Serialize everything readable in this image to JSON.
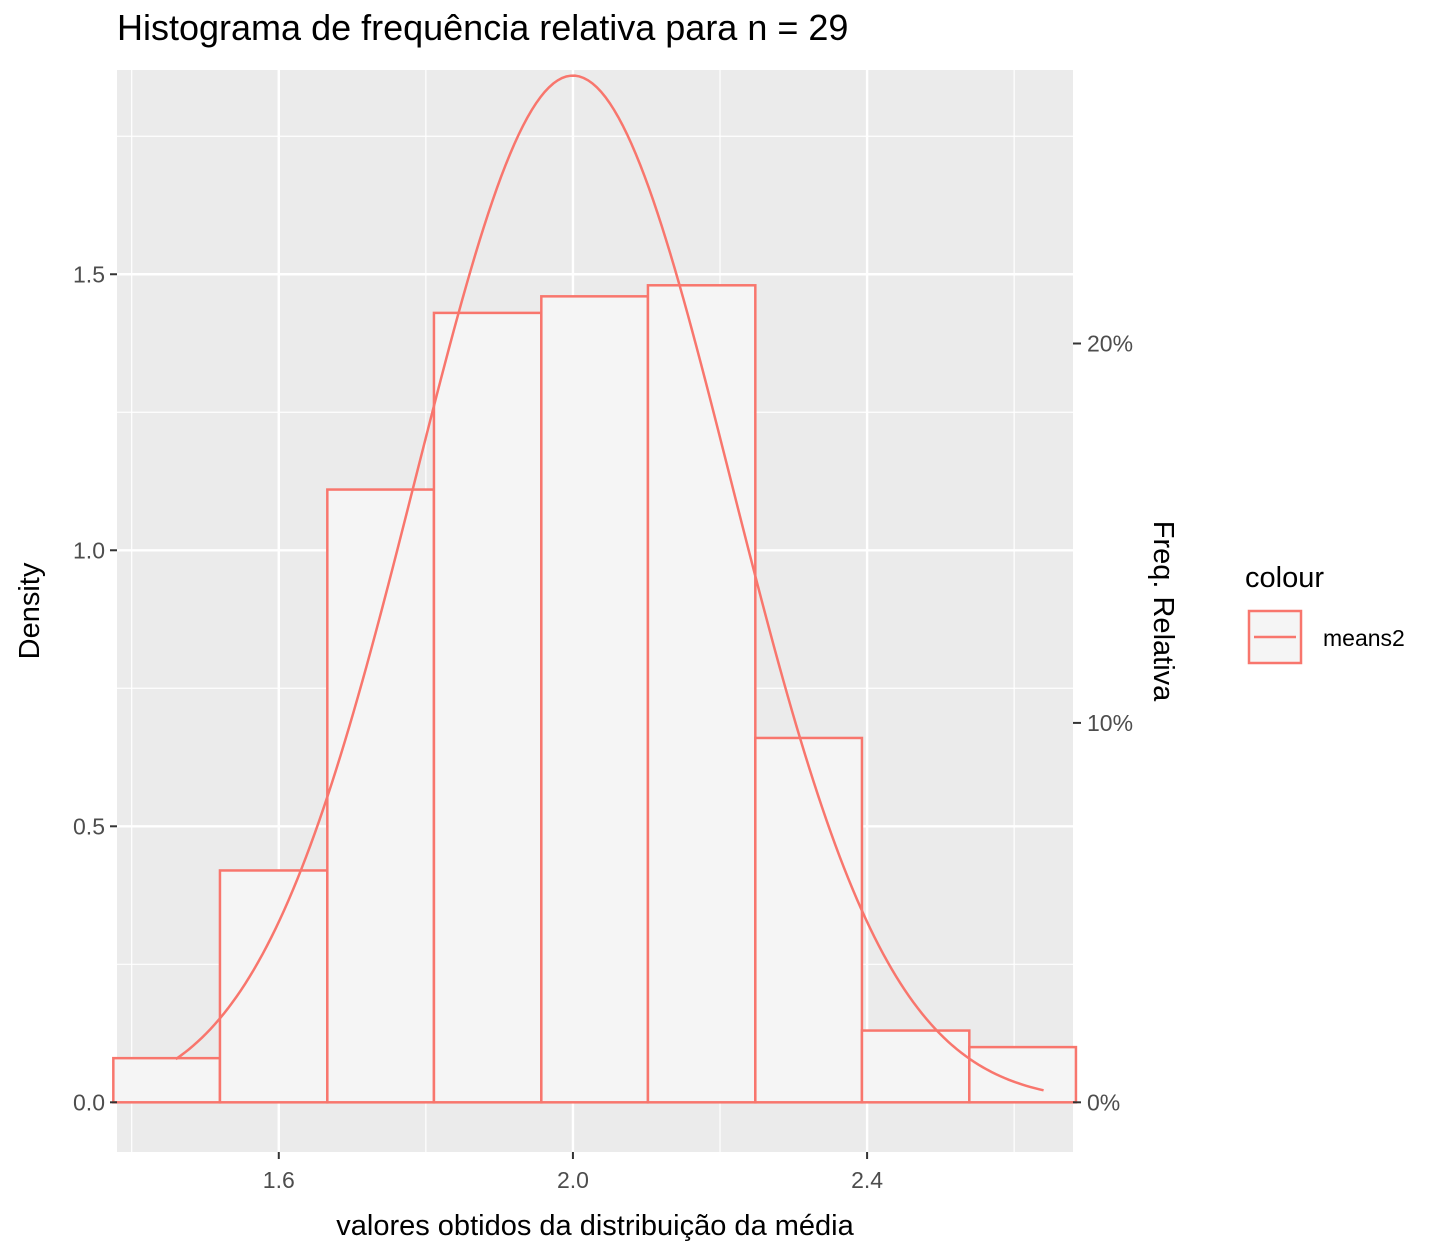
{
  "chart_data": {
    "type": "bar",
    "title": "Histograma de frequência relativa para n = 29",
    "xlabel": "valores obtidos da distribuição da média",
    "ylabel": "Density",
    "y2label": "Freq. Relativa",
    "xlim": [
      1.38,
      2.68
    ],
    "ylim": [
      -0.09,
      1.87
    ],
    "x_ticks": [
      1.6,
      2.0,
      2.4
    ],
    "x_tick_labels": [
      "1.6",
      "2.0",
      "2.4"
    ],
    "y_ticks": [
      0.0,
      0.5,
      1.0,
      1.5
    ],
    "y_tick_labels": [
      "0.0",
      "0.5",
      "1.0",
      "1.5"
    ],
    "y2_ticks": [
      0.0,
      0.1,
      0.2
    ],
    "y2_tick_labels": [
      "0%",
      "10%",
      "20%"
    ],
    "y2_per_y": 0.1455,
    "grid": true,
    "bins": [
      {
        "x0": 1.375,
        "x1": 1.52,
        "density": 0.08
      },
      {
        "x0": 1.52,
        "x1": 1.666,
        "density": 0.42
      },
      {
        "x0": 1.666,
        "x1": 1.811,
        "density": 1.11
      },
      {
        "x0": 1.811,
        "x1": 1.957,
        "density": 1.43
      },
      {
        "x0": 1.957,
        "x1": 2.102,
        "density": 1.46
      },
      {
        "x0": 2.102,
        "x1": 2.248,
        "density": 1.48
      },
      {
        "x0": 2.248,
        "x1": 2.393,
        "density": 0.66
      },
      {
        "x0": 2.393,
        "x1": 2.539,
        "density": 0.13
      },
      {
        "x0": 2.539,
        "x1": 2.684,
        "density": 0.1
      }
    ],
    "curve": {
      "type": "normal-density",
      "mean": 2.0,
      "sd": 0.2145,
      "x_range": [
        1.46,
        2.64
      ]
    },
    "legend": {
      "title": "colour",
      "entries": [
        {
          "label": "means2",
          "color": "#F8766D"
        }
      ],
      "placement": "right"
    },
    "colors": {
      "series": "#F8766D",
      "bar_fill": "#F5F5F5",
      "panel_bg": "#EBEBEB",
      "grid": "#FFFFFF",
      "tick": "#333333"
    }
  }
}
